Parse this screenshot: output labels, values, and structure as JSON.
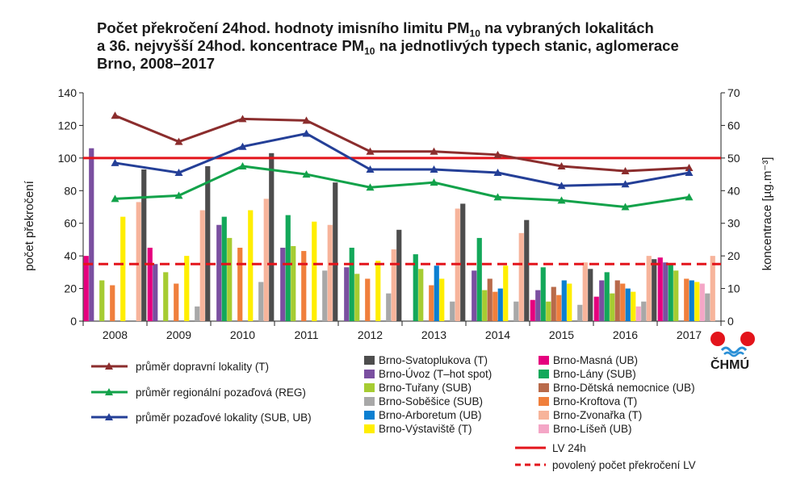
{
  "title": {
    "line1_pre": "Počet překročení 24hod. hodnoty imisního limitu PM",
    "line1_sub": "10",
    "line1_post": " na vybraných lokalitách",
    "line2_pre": "a 36. nejvyšší 24hod. koncentrace PM",
    "line2_sub": "10",
    "line2_post": " na jednotlivých typech stanic, aglomerace",
    "line3": "Brno, 2008–2017"
  },
  "logo": {
    "text": "ČHMÚ"
  },
  "chart_data": {
    "type": "bar",
    "categories": [
      "2008",
      "2009",
      "2010",
      "2011",
      "2012",
      "2013",
      "2014",
      "2015",
      "2016",
      "2017"
    ],
    "ylabel": "počet překročení",
    "ylabel_right": "koncentrace [µg.m⁻³]",
    "ylim": [
      0,
      140
    ],
    "ylim_right": [
      0,
      70
    ],
    "yticks": [
      0,
      20,
      40,
      60,
      80,
      100,
      120,
      140
    ],
    "yticks_right": [
      0,
      10,
      20,
      30,
      40,
      50,
      60,
      70
    ],
    "grid": false,
    "series": [
      {
        "name": "Brno-Masná (UB)",
        "color": "#e5007e",
        "values": [
          40,
          45,
          null,
          null,
          null,
          null,
          null,
          13,
          15,
          39
        ]
      },
      {
        "name": "Brno-Úvoz (T–hot spot)",
        "color": "#7a4fa0",
        "values": [
          106,
          35,
          59,
          45,
          33,
          null,
          31,
          19,
          25,
          36
        ]
      },
      {
        "name": "Brno-Lány (SUB)",
        "color": "#13a85a",
        "values": [
          null,
          null,
          64,
          65,
          45,
          41,
          51,
          33,
          30,
          35
        ]
      },
      {
        "name": "Brno-Tuřany (SUB)",
        "color": "#a6cc32",
        "values": [
          25,
          30,
          51,
          46,
          29,
          32,
          19,
          12,
          17,
          31
        ]
      },
      {
        "name": "Brno-Dětská nemocnice (UB)",
        "color": "#b86a4a",
        "values": [
          null,
          null,
          null,
          null,
          null,
          null,
          26,
          21,
          25,
          null
        ]
      },
      {
        "name": "Brno-Kroftova (T)",
        "color": "#f07f3c",
        "values": [
          22,
          23,
          45,
          43,
          26,
          22,
          18,
          16,
          23,
          26
        ]
      },
      {
        "name": "Brno-Arboretum (UB)",
        "color": "#0b7fd1",
        "values": [
          null,
          null,
          null,
          null,
          null,
          34,
          20,
          25,
          20,
          25
        ]
      },
      {
        "name": "Brno-Výstaviště (T)",
        "color": "#ffee00",
        "values": [
          64,
          40,
          68,
          61,
          37,
          26,
          34,
          23,
          18,
          24
        ]
      },
      {
        "name": "Brno-Líšeň (UB)",
        "color": "#f4a6c6",
        "values": [
          null,
          null,
          null,
          null,
          null,
          null,
          null,
          null,
          9,
          23
        ]
      },
      {
        "name": "Brno-Soběšice (SUB)",
        "color": "#a8a8a8",
        "values": [
          null,
          9,
          24,
          31,
          17,
          12,
          12,
          10,
          12,
          17
        ]
      },
      {
        "name": "Brno-Zvonařka (T)",
        "color": "#f7b49b",
        "values": [
          73,
          68,
          75,
          59,
          44,
          69,
          54,
          36,
          40,
          40
        ]
      },
      {
        "name": "Brno-Svatoplukova (T)",
        "color": "#4d4d4d",
        "values": [
          93,
          95,
          103,
          85,
          56,
          72,
          62,
          32,
          38,
          null
        ]
      }
    ],
    "lines": [
      {
        "name": "průměr dopravní lokality (T)",
        "color": "#8b2d2d",
        "axis": "right",
        "values": [
          63,
          55,
          62,
          61.5,
          52,
          52,
          51,
          47.5,
          46,
          47
        ]
      },
      {
        "name": "průměr regionální pozaďová (REG)",
        "color": "#12a24a",
        "axis": "right",
        "values": [
          37.5,
          38.5,
          47.5,
          45,
          41,
          42.5,
          38,
          37,
          35,
          38
        ]
      },
      {
        "name": "průměr pozaďové lokality (SUB, UB)",
        "color": "#243f97",
        "axis": "right",
        "values": [
          48.5,
          45.5,
          53.5,
          57.5,
          46.5,
          46.5,
          45.5,
          41.5,
          42,
          45.5
        ]
      }
    ],
    "reference_lines": [
      {
        "name": "LV 24h",
        "value": 50,
        "axis": "right",
        "color": "#e3141b",
        "style": "solid"
      },
      {
        "name": "povolený počet překročení LV",
        "value": 35,
        "axis": "left",
        "color": "#e3141b",
        "style": "dashed"
      }
    ]
  }
}
